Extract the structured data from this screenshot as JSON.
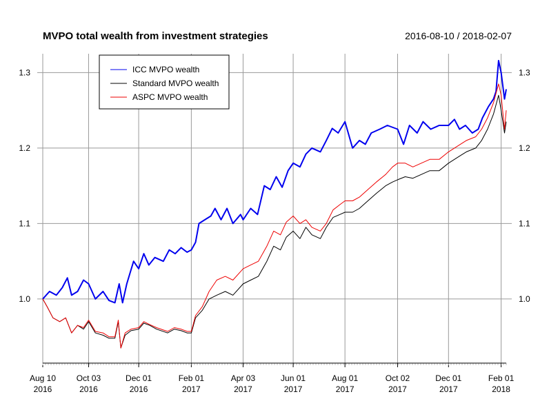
{
  "chart_data": {
    "type": "line",
    "title": "MVPO total wealth from investment strategies",
    "date_range": "2016-08-10 / 2018-02-07",
    "x_range": [
      "2016-08-10",
      "2018-02-07"
    ],
    "ylim": [
      0.915,
      1.325
    ],
    "y_ticks": [
      {
        "value": 1.0,
        "label": "1.0"
      },
      {
        "value": 1.1,
        "label": "1.1"
      },
      {
        "value": 1.2,
        "label": "1.2"
      },
      {
        "value": 1.3,
        "label": "1.3"
      }
    ],
    "x_ticks": [
      {
        "date": "2016-08-10",
        "label1": "Aug 10",
        "label2": "2016"
      },
      {
        "date": "2016-10-03",
        "label1": "Oct 03",
        "label2": "2016"
      },
      {
        "date": "2016-12-01",
        "label1": "Dec 01",
        "label2": "2016"
      },
      {
        "date": "2017-02-01",
        "label1": "Feb 01",
        "label2": "2017"
      },
      {
        "date": "2017-04-03",
        "label1": "Apr 03",
        "label2": "2017"
      },
      {
        "date": "2017-06-01",
        "label1": "Jun 01",
        "label2": "2017"
      },
      {
        "date": "2017-08-01",
        "label1": "Aug 01",
        "label2": "2017"
      },
      {
        "date": "2017-10-02",
        "label1": "Oct 02",
        "label2": "2017"
      },
      {
        "date": "2017-12-01",
        "label1": "Dec 01",
        "label2": "2017"
      },
      {
        "date": "2018-02-01",
        "label1": "Feb 01",
        "label2": "2018"
      }
    ],
    "grid": true,
    "legend": "top-left",
    "series": [
      {
        "name": "ICC MVPO wealth",
        "color": "#0000ee",
        "points": [
          [
            "2016-08-10",
            1.0
          ],
          [
            "2016-08-18",
            1.01
          ],
          [
            "2016-08-26",
            1.005
          ],
          [
            "2016-09-02",
            1.015
          ],
          [
            "2016-09-08",
            1.028
          ],
          [
            "2016-09-13",
            1.005
          ],
          [
            "2016-09-20",
            1.01
          ],
          [
            "2016-09-27",
            1.025
          ],
          [
            "2016-10-03",
            1.02
          ],
          [
            "2016-10-11",
            1.0
          ],
          [
            "2016-10-20",
            1.01
          ],
          [
            "2016-10-27",
            0.998
          ],
          [
            "2016-11-03",
            0.995
          ],
          [
            "2016-11-08",
            1.02
          ],
          [
            "2016-11-12",
            0.995
          ],
          [
            "2016-11-17",
            1.02
          ],
          [
            "2016-11-25",
            1.05
          ],
          [
            "2016-12-01",
            1.04
          ],
          [
            "2016-12-07",
            1.06
          ],
          [
            "2016-12-13",
            1.045
          ],
          [
            "2016-12-20",
            1.055
          ],
          [
            "2016-12-30",
            1.05
          ],
          [
            "2017-01-06",
            1.065
          ],
          [
            "2017-01-13",
            1.06
          ],
          [
            "2017-01-20",
            1.068
          ],
          [
            "2017-01-27",
            1.062
          ],
          [
            "2017-02-01",
            1.065
          ],
          [
            "2017-02-06",
            1.075
          ],
          [
            "2017-02-10",
            1.1
          ],
          [
            "2017-02-17",
            1.105
          ],
          [
            "2017-02-24",
            1.11
          ],
          [
            "2017-03-01",
            1.12
          ],
          [
            "2017-03-08",
            1.105
          ],
          [
            "2017-03-15",
            1.12
          ],
          [
            "2017-03-22",
            1.1
          ],
          [
            "2017-03-31",
            1.112
          ],
          [
            "2017-04-03",
            1.105
          ],
          [
            "2017-04-12",
            1.12
          ],
          [
            "2017-04-20",
            1.112
          ],
          [
            "2017-04-28",
            1.15
          ],
          [
            "2017-05-05",
            1.145
          ],
          [
            "2017-05-12",
            1.162
          ],
          [
            "2017-05-19",
            1.148
          ],
          [
            "2017-05-26",
            1.17
          ],
          [
            "2017-06-01",
            1.18
          ],
          [
            "2017-06-09",
            1.175
          ],
          [
            "2017-06-16",
            1.192
          ],
          [
            "2017-06-23",
            1.2
          ],
          [
            "2017-07-03",
            1.195
          ],
          [
            "2017-07-10",
            1.21
          ],
          [
            "2017-07-17",
            1.226
          ],
          [
            "2017-07-24",
            1.22
          ],
          [
            "2017-08-01",
            1.235
          ],
          [
            "2017-08-10",
            1.2
          ],
          [
            "2017-08-18",
            1.21
          ],
          [
            "2017-08-25",
            1.205
          ],
          [
            "2017-09-01",
            1.22
          ],
          [
            "2017-09-11",
            1.225
          ],
          [
            "2017-09-20",
            1.23
          ],
          [
            "2017-10-02",
            1.225
          ],
          [
            "2017-10-09",
            1.205
          ],
          [
            "2017-10-16",
            1.23
          ],
          [
            "2017-10-25",
            1.22
          ],
          [
            "2017-11-01",
            1.235
          ],
          [
            "2017-11-10",
            1.225
          ],
          [
            "2017-11-20",
            1.23
          ],
          [
            "2017-12-01",
            1.23
          ],
          [
            "2017-12-08",
            1.238
          ],
          [
            "2017-12-14",
            1.225
          ],
          [
            "2017-12-21",
            1.23
          ],
          [
            "2017-12-29",
            1.22
          ],
          [
            "2018-01-05",
            1.225
          ],
          [
            "2018-01-10",
            1.24
          ],
          [
            "2018-01-17",
            1.255
          ],
          [
            "2018-01-23",
            1.265
          ],
          [
            "2018-01-26",
            1.275
          ],
          [
            "2018-01-29",
            1.316
          ],
          [
            "2018-02-01",
            1.3
          ],
          [
            "2018-02-05",
            1.265
          ],
          [
            "2018-02-07",
            1.278
          ]
        ]
      },
      {
        "name": "Standard MVPO wealth",
        "color": "#000000",
        "points": [
          [
            "2016-08-10",
            1.0
          ],
          [
            "2016-08-15",
            0.99
          ],
          [
            "2016-08-22",
            0.975
          ],
          [
            "2016-08-30",
            0.97
          ],
          [
            "2016-09-06",
            0.975
          ],
          [
            "2016-09-13",
            0.955
          ],
          [
            "2016-09-20",
            0.965
          ],
          [
            "2016-09-27",
            0.96
          ],
          [
            "2016-10-03",
            0.97
          ],
          [
            "2016-10-11",
            0.955
          ],
          [
            "2016-10-20",
            0.952
          ],
          [
            "2016-10-27",
            0.948
          ],
          [
            "2016-11-03",
            0.948
          ],
          [
            "2016-11-07",
            0.97
          ],
          [
            "2016-11-10",
            0.935
          ],
          [
            "2016-11-15",
            0.952
          ],
          [
            "2016-11-22",
            0.958
          ],
          [
            "2016-12-01",
            0.96
          ],
          [
            "2016-12-07",
            0.968
          ],
          [
            "2016-12-14",
            0.965
          ],
          [
            "2016-12-22",
            0.96
          ],
          [
            "2017-01-04",
            0.955
          ],
          [
            "2017-01-12",
            0.96
          ],
          [
            "2017-01-20",
            0.958
          ],
          [
            "2017-01-27",
            0.955
          ],
          [
            "2017-02-01",
            0.955
          ],
          [
            "2017-02-06",
            0.975
          ],
          [
            "2017-02-14",
            0.985
          ],
          [
            "2017-02-22",
            1.0
          ],
          [
            "2017-03-03",
            1.005
          ],
          [
            "2017-03-13",
            1.01
          ],
          [
            "2017-03-22",
            1.005
          ],
          [
            "2017-04-03",
            1.02
          ],
          [
            "2017-04-12",
            1.025
          ],
          [
            "2017-04-21",
            1.03
          ],
          [
            "2017-05-01",
            1.05
          ],
          [
            "2017-05-09",
            1.07
          ],
          [
            "2017-05-17",
            1.065
          ],
          [
            "2017-05-24",
            1.082
          ],
          [
            "2017-06-01",
            1.09
          ],
          [
            "2017-06-09",
            1.08
          ],
          [
            "2017-06-16",
            1.095
          ],
          [
            "2017-06-23",
            1.085
          ],
          [
            "2017-07-03",
            1.08
          ],
          [
            "2017-07-10",
            1.095
          ],
          [
            "2017-07-18",
            1.108
          ],
          [
            "2017-07-26",
            1.112
          ],
          [
            "2017-08-01",
            1.115
          ],
          [
            "2017-08-10",
            1.115
          ],
          [
            "2017-08-18",
            1.12
          ],
          [
            "2017-08-28",
            1.13
          ],
          [
            "2017-09-07",
            1.14
          ],
          [
            "2017-09-18",
            1.15
          ],
          [
            "2017-09-26",
            1.155
          ],
          [
            "2017-10-02",
            1.158
          ],
          [
            "2017-10-11",
            1.162
          ],
          [
            "2017-10-20",
            1.16
          ],
          [
            "2017-10-30",
            1.165
          ],
          [
            "2017-11-09",
            1.17
          ],
          [
            "2017-11-20",
            1.17
          ],
          [
            "2017-12-01",
            1.18
          ],
          [
            "2017-12-08",
            1.185
          ],
          [
            "2017-12-15",
            1.19
          ],
          [
            "2017-12-22",
            1.195
          ],
          [
            "2018-01-02",
            1.2
          ],
          [
            "2018-01-09",
            1.21
          ],
          [
            "2018-01-16",
            1.225
          ],
          [
            "2018-01-23",
            1.245
          ],
          [
            "2018-01-29",
            1.27
          ],
          [
            "2018-02-01",
            1.25
          ],
          [
            "2018-02-05",
            1.22
          ],
          [
            "2018-02-07",
            1.235
          ]
        ]
      },
      {
        "name": "ASPC MVPO wealth",
        "color": "#ee0000",
        "points": [
          [
            "2016-08-10",
            1.0
          ],
          [
            "2016-08-15",
            0.99
          ],
          [
            "2016-08-22",
            0.975
          ],
          [
            "2016-08-30",
            0.97
          ],
          [
            "2016-09-06",
            0.975
          ],
          [
            "2016-09-13",
            0.955
          ],
          [
            "2016-09-20",
            0.965
          ],
          [
            "2016-09-27",
            0.962
          ],
          [
            "2016-10-03",
            0.972
          ],
          [
            "2016-10-11",
            0.957
          ],
          [
            "2016-10-20",
            0.955
          ],
          [
            "2016-10-27",
            0.95
          ],
          [
            "2016-11-03",
            0.95
          ],
          [
            "2016-11-07",
            0.972
          ],
          [
            "2016-11-10",
            0.935
          ],
          [
            "2016-11-15",
            0.955
          ],
          [
            "2016-11-22",
            0.96
          ],
          [
            "2016-12-01",
            0.962
          ],
          [
            "2016-12-07",
            0.97
          ],
          [
            "2016-12-14",
            0.966
          ],
          [
            "2016-12-22",
            0.962
          ],
          [
            "2017-01-04",
            0.957
          ],
          [
            "2017-01-12",
            0.962
          ],
          [
            "2017-01-20",
            0.96
          ],
          [
            "2017-01-27",
            0.957
          ],
          [
            "2017-02-01",
            0.957
          ],
          [
            "2017-02-06",
            0.978
          ],
          [
            "2017-02-14",
            0.99
          ],
          [
            "2017-02-22",
            1.01
          ],
          [
            "2017-03-03",
            1.025
          ],
          [
            "2017-03-13",
            1.03
          ],
          [
            "2017-03-22",
            1.025
          ],
          [
            "2017-04-03",
            1.04
          ],
          [
            "2017-04-12",
            1.045
          ],
          [
            "2017-04-21",
            1.05
          ],
          [
            "2017-05-01",
            1.07
          ],
          [
            "2017-05-09",
            1.09
          ],
          [
            "2017-05-17",
            1.085
          ],
          [
            "2017-05-24",
            1.102
          ],
          [
            "2017-06-01",
            1.11
          ],
          [
            "2017-06-09",
            1.1
          ],
          [
            "2017-06-16",
            1.105
          ],
          [
            "2017-06-23",
            1.095
          ],
          [
            "2017-07-03",
            1.09
          ],
          [
            "2017-07-10",
            1.1
          ],
          [
            "2017-07-18",
            1.118
          ],
          [
            "2017-07-26",
            1.125
          ],
          [
            "2017-08-01",
            1.13
          ],
          [
            "2017-08-10",
            1.13
          ],
          [
            "2017-08-18",
            1.135
          ],
          [
            "2017-08-28",
            1.145
          ],
          [
            "2017-09-07",
            1.155
          ],
          [
            "2017-09-18",
            1.165
          ],
          [
            "2017-09-26",
            1.175
          ],
          [
            "2017-10-02",
            1.18
          ],
          [
            "2017-10-11",
            1.18
          ],
          [
            "2017-10-20",
            1.175
          ],
          [
            "2017-10-30",
            1.18
          ],
          [
            "2017-11-09",
            1.185
          ],
          [
            "2017-11-20",
            1.185
          ],
          [
            "2017-12-01",
            1.195
          ],
          [
            "2017-12-08",
            1.2
          ],
          [
            "2017-12-15",
            1.205
          ],
          [
            "2017-12-22",
            1.21
          ],
          [
            "2018-01-02",
            1.215
          ],
          [
            "2018-01-09",
            1.225
          ],
          [
            "2018-01-16",
            1.24
          ],
          [
            "2018-01-23",
            1.26
          ],
          [
            "2018-01-29",
            1.285
          ],
          [
            "2018-02-01",
            1.27
          ],
          [
            "2018-02-05",
            1.225
          ],
          [
            "2018-02-07",
            1.25
          ]
        ]
      }
    ]
  }
}
